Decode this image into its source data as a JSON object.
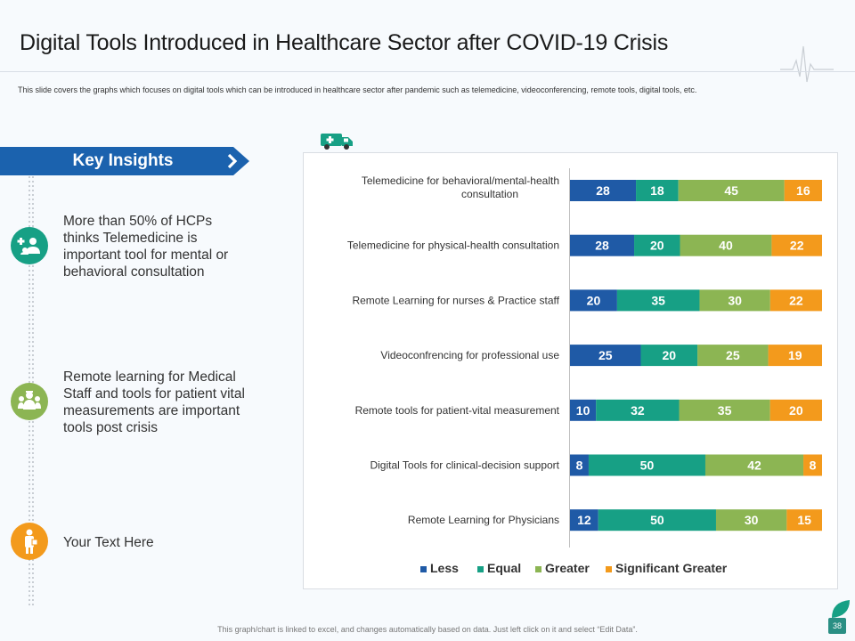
{
  "header": {
    "title": "Digital Tools Introduced in Healthcare Sector after COVID-19 Crisis",
    "subtitle": "This slide covers the graphs which focuses on digital tools which can be introduced in healthcare sector after pandemic such as telemedicine, videoconferencing, remote tools, digital tools, etc."
  },
  "sidebar": {
    "heading": "Key Insights",
    "items": [
      {
        "icon": "doctor-patient-icon",
        "text": "More than 50% of HCPs thinks Telemedicine is important tool for mental or behavioral consultation"
      },
      {
        "icon": "medical-staff-icon",
        "text": "Remote learning for Medical Staff and tools for patient vital measurements are important tools post crisis"
      },
      {
        "icon": "patient-icon",
        "text": "Your Text Here"
      }
    ]
  },
  "colors": {
    "less": "#1f5aa6",
    "equal": "#17a085",
    "greater": "#8cb553",
    "significant_greater": "#f39a1c",
    "banner": "#1b62ae",
    "circle1": "#17a085",
    "circle2": "#8cb553",
    "circle3": "#f39a1c"
  },
  "chart_data": {
    "type": "bar",
    "orientation": "horizontal",
    "stacked": true,
    "categories": [
      "Telemedicine for behavioral/mental-health consultation",
      "Telemedicine for physical-health consultation",
      "Remote Learning for nurses & Practice staff",
      "Videoconfrencing for professional use",
      "Remote tools for patient-vital measurement",
      "Digital Tools for clinical-decision support",
      "Remote Learning for Physicians"
    ],
    "series": [
      {
        "name": "Less",
        "values": [
          28,
          28,
          20,
          25,
          10,
          8,
          12
        ]
      },
      {
        "name": "Equal",
        "values": [
          18,
          20,
          35,
          20,
          32,
          50,
          50
        ]
      },
      {
        "name": "Greater",
        "values": [
          45,
          40,
          30,
          25,
          35,
          42,
          30
        ]
      },
      {
        "name": "Significant Greater",
        "values": [
          16,
          22,
          22,
          19,
          20,
          8,
          15
        ]
      }
    ],
    "legend": "bottom",
    "data_labels": true,
    "normalized": true
  },
  "footer": {
    "note": "This graph/chart is linked to excel, and changes automatically based on data. Just left click on it and select “Edit Data”.",
    "page_number": "38"
  }
}
